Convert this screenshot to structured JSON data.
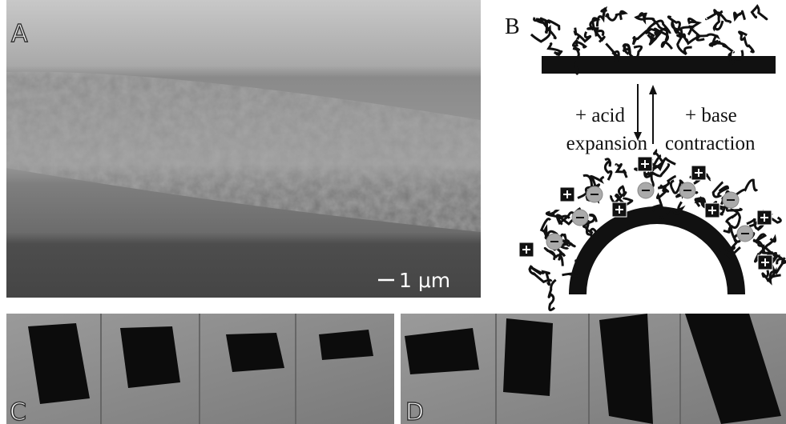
{
  "panels": {
    "a": {
      "label": "A",
      "scale_bar": "1 μm"
    },
    "b": {
      "label": "B",
      "left_arrow": [
        "+ acid",
        "expansion"
      ],
      "right_arrow": [
        "+ base",
        "contraction"
      ]
    },
    "c": {
      "label": "C"
    },
    "d": {
      "label": "D"
    }
  }
}
